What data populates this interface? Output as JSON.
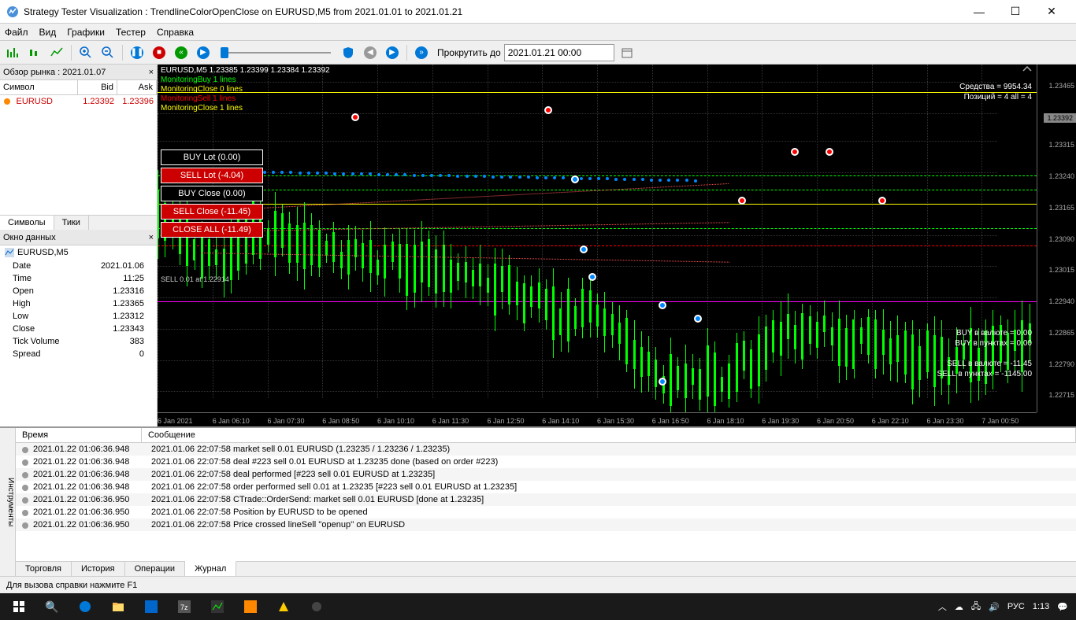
{
  "window": {
    "title": "Strategy Tester Visualization : TrendlineColorOpenClose on EURUSD,M5 from 2021.01.01 to 2021.01.21"
  },
  "menu": [
    "Файл",
    "Вид",
    "Графики",
    "Тестер",
    "Справка"
  ],
  "toolbar": {
    "scroll_to_label": "Прокрутить до",
    "scroll_date": "2021.01.21 00:00"
  },
  "market_watch": {
    "title": "Обзор рынка : 2021.01.07",
    "cols": [
      "Символ",
      "Bid",
      "Ask"
    ],
    "row": {
      "symbol": "EURUSD",
      "bid": "1.23392",
      "ask": "1.23396"
    },
    "tabs": [
      "Символы",
      "Тики"
    ],
    "active_tab": 0
  },
  "data_window": {
    "title": "Окно данных",
    "symbol": "EURUSD,M5",
    "rows": [
      [
        "Date",
        "2021.01.06"
      ],
      [
        "Time",
        "11:25"
      ],
      [
        "Open",
        "1.23316"
      ],
      [
        "High",
        "1.23365"
      ],
      [
        "Low",
        "1.23312"
      ],
      [
        "Close",
        "1.23343"
      ],
      [
        "Tick Volume",
        "383"
      ],
      [
        "Spread",
        "0"
      ]
    ]
  },
  "chart": {
    "header_line": "EURUSD,M5  1.23385 1.23399 1.23384 1.23392",
    "monitor_lines": [
      {
        "text": "MonitoringBuy 1 lines",
        "cls": "green"
      },
      {
        "text": "MonitoringClose 0 lines",
        "cls": "yellow"
      },
      {
        "text": "MonitoringSell 1 lines",
        "cls": "red"
      },
      {
        "text": "MonitoringClose 1 lines",
        "cls": "yellow"
      }
    ],
    "badges": [
      {
        "text": "BUY Lot (0.00)",
        "cls": "black"
      },
      {
        "text": "SELL Lot (-4.04)",
        "cls": "red"
      },
      {
        "text": "BUY Close (0.00)",
        "cls": "black"
      },
      {
        "text": "SELL Close (-11.45)",
        "cls": "red"
      },
      {
        "text": "CLOSE ALL (-11.49)",
        "cls": "red"
      }
    ],
    "sell_label": "SELL 0.01 at 1.22914",
    "right_top": [
      "Средства = 9954.34",
      "Позиций = 4 all = 4"
    ],
    "right_bottom": [
      "BUY в валюте = 0.00",
      "BUY в пунктах = 0.00",
      "",
      "SELL в валюте = -11.45",
      "SELL в пунктах = -1145.00"
    ],
    "price_ticks": [
      {
        "v": "1.23465",
        "pct": 5
      },
      {
        "v": "1.23392",
        "pct": 14,
        "current": true
      },
      {
        "v": "1.23315",
        "pct": 22
      },
      {
        "v": "1.23240",
        "pct": 31
      },
      {
        "v": "1.23165",
        "pct": 40
      },
      {
        "v": "1.23090",
        "pct": 49
      },
      {
        "v": "1.23015",
        "pct": 58
      },
      {
        "v": "1.22940",
        "pct": 67
      },
      {
        "v": "1.22865",
        "pct": 76
      },
      {
        "v": "1.22790",
        "pct": 85
      },
      {
        "v": "1.22715",
        "pct": 94
      }
    ],
    "time_ticks": [
      "6 Jan 2021",
      "6 Jan 06:10",
      "6 Jan 07:30",
      "6 Jan 08:50",
      "6 Jan 10:10",
      "6 Jan 11:30",
      "6 Jan 12:50",
      "6 Jan 14:10",
      "6 Jan 15:30",
      "6 Jan 16:50",
      "6 Jan 18:10",
      "6 Jan 19:30",
      "6 Jan 20:50",
      "6 Jan 22:10",
      "6 Jan 23:30",
      "7 Jan 00:50"
    ],
    "hlines": [
      {
        "cls": "yellow",
        "pct": 8
      },
      {
        "cls": "green-dash",
        "pct": 32
      },
      {
        "cls": "green-dash",
        "pct": 36
      },
      {
        "cls": "yellow",
        "pct": 40
      },
      {
        "cls": "green-dash",
        "pct": 47
      },
      {
        "cls": "red-dash",
        "pct": 52
      },
      {
        "cls": "magenta",
        "pct": 68
      }
    ],
    "markers": [
      {
        "x": 7,
        "y": 40,
        "c": "red"
      },
      {
        "x": 22,
        "y": 14,
        "c": "red"
      },
      {
        "x": 44,
        "y": 12,
        "c": "red"
      },
      {
        "x": 47,
        "y": 32,
        "c": "blue"
      },
      {
        "x": 48,
        "y": 52,
        "c": "blue"
      },
      {
        "x": 49,
        "y": 60,
        "c": "blue"
      },
      {
        "x": 57,
        "y": 68,
        "c": "blue"
      },
      {
        "x": 61,
        "y": 72,
        "c": "blue"
      },
      {
        "x": 57,
        "y": 90,
        "c": "blue"
      },
      {
        "x": 66,
        "y": 38,
        "c": "red"
      },
      {
        "x": 72,
        "y": 24,
        "c": "red"
      },
      {
        "x": 76,
        "y": 24,
        "c": "red"
      },
      {
        "x": 82,
        "y": 38,
        "c": "red"
      }
    ],
    "candles_seed": 42,
    "candle_count": 120,
    "candle_color": "#00ff00",
    "bg_color": "#000000",
    "grid_color": "#333333"
  },
  "journal": {
    "side_label": "Инструменты",
    "cols": [
      "Время",
      "Сообщение"
    ],
    "rows": [
      [
        "2021.01.22 01:06:36.948",
        "2021.01.06 22:07:58   market sell 0.01 EURUSD (1.23235 / 1.23236 / 1.23235)"
      ],
      [
        "2021.01.22 01:06:36.948",
        "2021.01.06 22:07:58   deal #223 sell 0.01 EURUSD at 1.23235 done (based on order #223)"
      ],
      [
        "2021.01.22 01:06:36.948",
        "2021.01.06 22:07:58   deal performed [#223 sell 0.01 EURUSD at 1.23235]"
      ],
      [
        "2021.01.22 01:06:36.948",
        "2021.01.06 22:07:58   order performed sell 0.01 at 1.23235 [#223 sell 0.01 EURUSD at 1.23235]"
      ],
      [
        "2021.01.22 01:06:36.950",
        "2021.01.06 22:07:58   CTrade::OrderSend: market sell 0.01 EURUSD [done at 1.23235]"
      ],
      [
        "2021.01.22 01:06:36.950",
        "2021.01.06 22:07:58   Position by EURUSD to be opened"
      ],
      [
        "2021.01.22 01:06:36.950",
        "2021.01.06 22:07:58   Price crossed lineSell ''openup'' on EURUSD"
      ]
    ],
    "tabs": [
      "Торговля",
      "История",
      "Операции",
      "Журнал"
    ],
    "active_tab": 3
  },
  "status": "Для вызова справки нажмите F1",
  "taskbar": {
    "lang": "РУС",
    "time": "1:13"
  }
}
